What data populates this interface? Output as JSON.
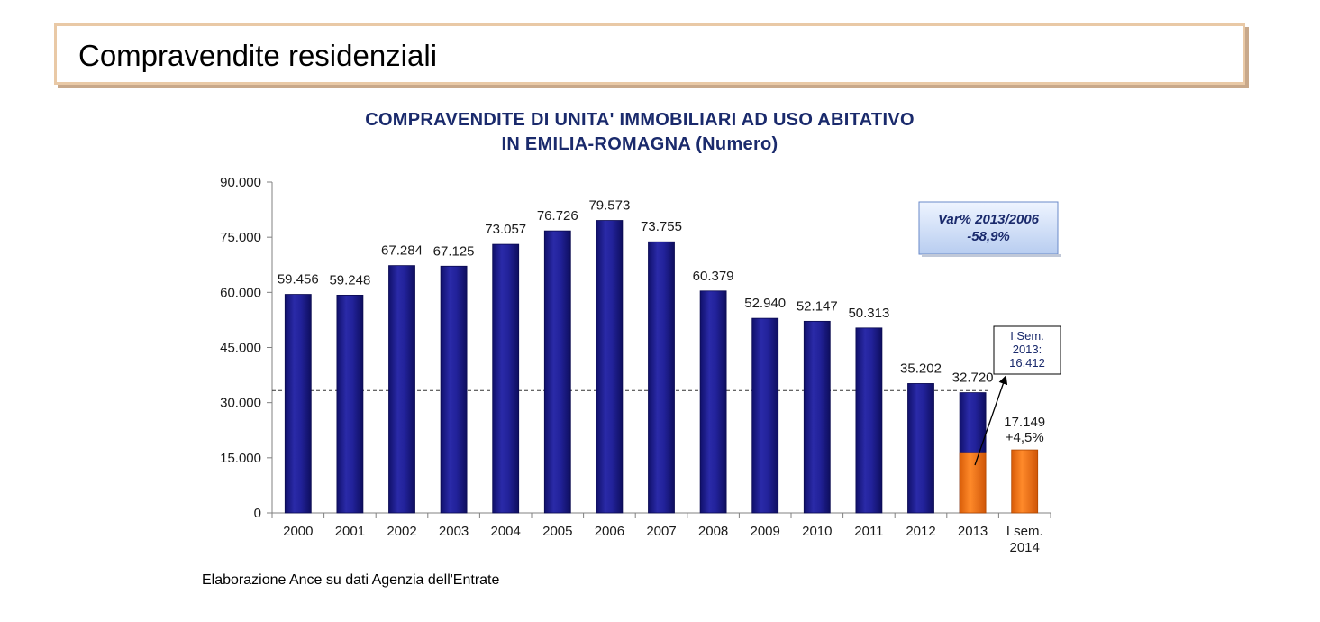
{
  "page": {
    "heading": "Compravendite residenziali",
    "footnote": "Elaborazione Ance su dati Agenzia dell'Entrate"
  },
  "chart_data": {
    "type": "bar",
    "title_lines": [
      "COMPRAVENDITE DI UNITA' IMMOBILIARI AD USO ABITATIVO",
      "IN EMILIA-ROMAGNA (Numero)"
    ],
    "xlabel": "",
    "ylabel": "",
    "ylim": [
      0,
      90000
    ],
    "yticks": [
      0,
      15000,
      30000,
      45000,
      60000,
      75000,
      90000
    ],
    "ytick_labels": [
      "0",
      "15.000",
      "30.000",
      "45.000",
      "60.000",
      "75.000",
      "90.000"
    ],
    "categories": [
      "2000",
      "2001",
      "2002",
      "2003",
      "2004",
      "2005",
      "2006",
      "2007",
      "2008",
      "2009",
      "2010",
      "2011",
      "2012",
      "2013",
      "I sem.\n2014"
    ],
    "values": [
      59456,
      59248,
      67284,
      67125,
      73057,
      76726,
      79573,
      73755,
      60379,
      52940,
      52147,
      50313,
      35202,
      32720,
      17149
    ],
    "value_labels": [
      "59.456",
      "59.248",
      "67.284",
      "67.125",
      "73.057",
      "76.726",
      "79.573",
      "73.755",
      "60.379",
      "52.940",
      "52.147",
      "50.313",
      "35.202",
      "32.720",
      "17.149\n+4,5%"
    ],
    "highlight_segments": [
      {
        "category": "2013",
        "value": 16412
      },
      {
        "category": "I sem.\n2014",
        "value": 17149
      }
    ],
    "reference_line": {
      "value": 33300,
      "style": "dashed"
    },
    "annotations": [
      {
        "text": "Var% 2013/2006\n-58,9%",
        "style": "box"
      },
      {
        "text": "I Sem.\n2013:\n16.412",
        "style": "callout",
        "points_to": "2013"
      }
    ],
    "colors": {
      "bar": "#1c1c8a",
      "highlight": "#f07818",
      "axis": "#808080",
      "label": "#1a1a1a",
      "title": "#1a2a6c"
    },
    "grid": false,
    "legend": "none"
  }
}
